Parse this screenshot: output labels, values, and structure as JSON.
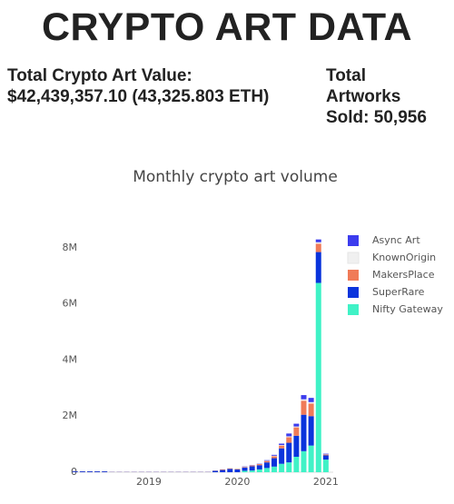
{
  "header": {
    "title": "CRYPTO ART DATA",
    "stats": [
      {
        "label": "Total Crypto Art Value:",
        "value": "$42,439,357.10 (43,325.803 ETH)"
      },
      {
        "label": "Total Artworks Sold:",
        "value": "50,956"
      }
    ]
  },
  "chart_data": {
    "type": "bar",
    "barmode": "stack",
    "title": "Monthly crypto art volume",
    "x": [
      "2018-03",
      "2018-04",
      "2018-05",
      "2018-06",
      "2018-07",
      "2018-08",
      "2018-09",
      "2018-10",
      "2018-11",
      "2018-12",
      "2019-01",
      "2019-02",
      "2019-03",
      "2019-04",
      "2019-05",
      "2019-06",
      "2019-07",
      "2019-08",
      "2019-09",
      "2019-10",
      "2019-11",
      "2019-12",
      "2020-01",
      "2020-02",
      "2020-03",
      "2020-04",
      "2020-05",
      "2020-06",
      "2020-07",
      "2020-08",
      "2020-09",
      "2020-10",
      "2020-11",
      "2020-12",
      "2021-01"
    ],
    "series": [
      {
        "name": "Nifty Gateway",
        "color": "#40f2c6",
        "values": [
          0,
          0,
          0,
          0,
          0,
          0,
          0,
          0,
          0,
          0,
          0,
          0,
          0,
          0,
          0,
          0,
          0,
          0,
          0,
          0,
          0,
          0,
          0,
          50000,
          60000,
          100000,
          150000,
          200000,
          300000,
          350000,
          550000,
          750000,
          950000,
          6750000,
          450000
        ]
      },
      {
        "name": "SuperRare",
        "color": "#0a34dc",
        "values": [
          30000,
          30000,
          30000,
          30000,
          30000,
          10000,
          10000,
          10000,
          10000,
          10000,
          10000,
          10000,
          10000,
          10000,
          10000,
          10000,
          10000,
          10000,
          10000,
          50000,
          80000,
          120000,
          100000,
          120000,
          150000,
          150000,
          200000,
          300000,
          550000,
          700000,
          750000,
          1300000,
          1050000,
          1100000,
          150000
        ]
      },
      {
        "name": "MakersPlace",
        "color": "#f07b58",
        "values": [
          5000,
          5000,
          5000,
          5000,
          5000,
          5000,
          5000,
          5000,
          5000,
          5000,
          5000,
          5000,
          5000,
          5000,
          5000,
          5000,
          5000,
          5000,
          5000,
          10000,
          20000,
          20000,
          20000,
          20000,
          30000,
          40000,
          50000,
          70000,
          100000,
          200000,
          300000,
          500000,
          450000,
          300000,
          30000
        ]
      },
      {
        "name": "KnownOrigin",
        "color": "#f0f0f0",
        "values": [
          2000,
          2000,
          2000,
          2000,
          2000,
          2000,
          2000,
          2000,
          2000,
          2000,
          2000,
          2000,
          2000,
          2000,
          2000,
          2000,
          2000,
          2000,
          2000,
          5000,
          10000,
          10000,
          10000,
          10000,
          10000,
          10000,
          10000,
          20000,
          20000,
          30000,
          30000,
          50000,
          50000,
          50000,
          10000
        ]
      },
      {
        "name": "Async Art",
        "color": "#3c3cee",
        "values": [
          0,
          0,
          0,
          0,
          0,
          0,
          0,
          0,
          0,
          0,
          0,
          0,
          0,
          0,
          0,
          0,
          0,
          0,
          0,
          0,
          0,
          0,
          0,
          10000,
          10000,
          10000,
          20000,
          30000,
          50000,
          100000,
          100000,
          150000,
          150000,
          100000,
          20000
        ]
      }
    ],
    "xlim": [
      "2018-02",
      "2021-02"
    ],
    "xticks": [
      {
        "value": "2019-01",
        "label": "2019"
      },
      {
        "value": "2020-01",
        "label": "2020"
      },
      {
        "value": "2021-01",
        "label": "2021"
      }
    ],
    "ylim": [
      0,
      8500000
    ],
    "yticks": [
      0,
      {
        "value": 2000000,
        "label": "2M"
      },
      {
        "value": 4000000,
        "label": "4M"
      },
      {
        "value": 6000000,
        "label": "6M"
      },
      {
        "value": 8000000,
        "label": "8M"
      }
    ],
    "grid": false,
    "legend": "right"
  }
}
